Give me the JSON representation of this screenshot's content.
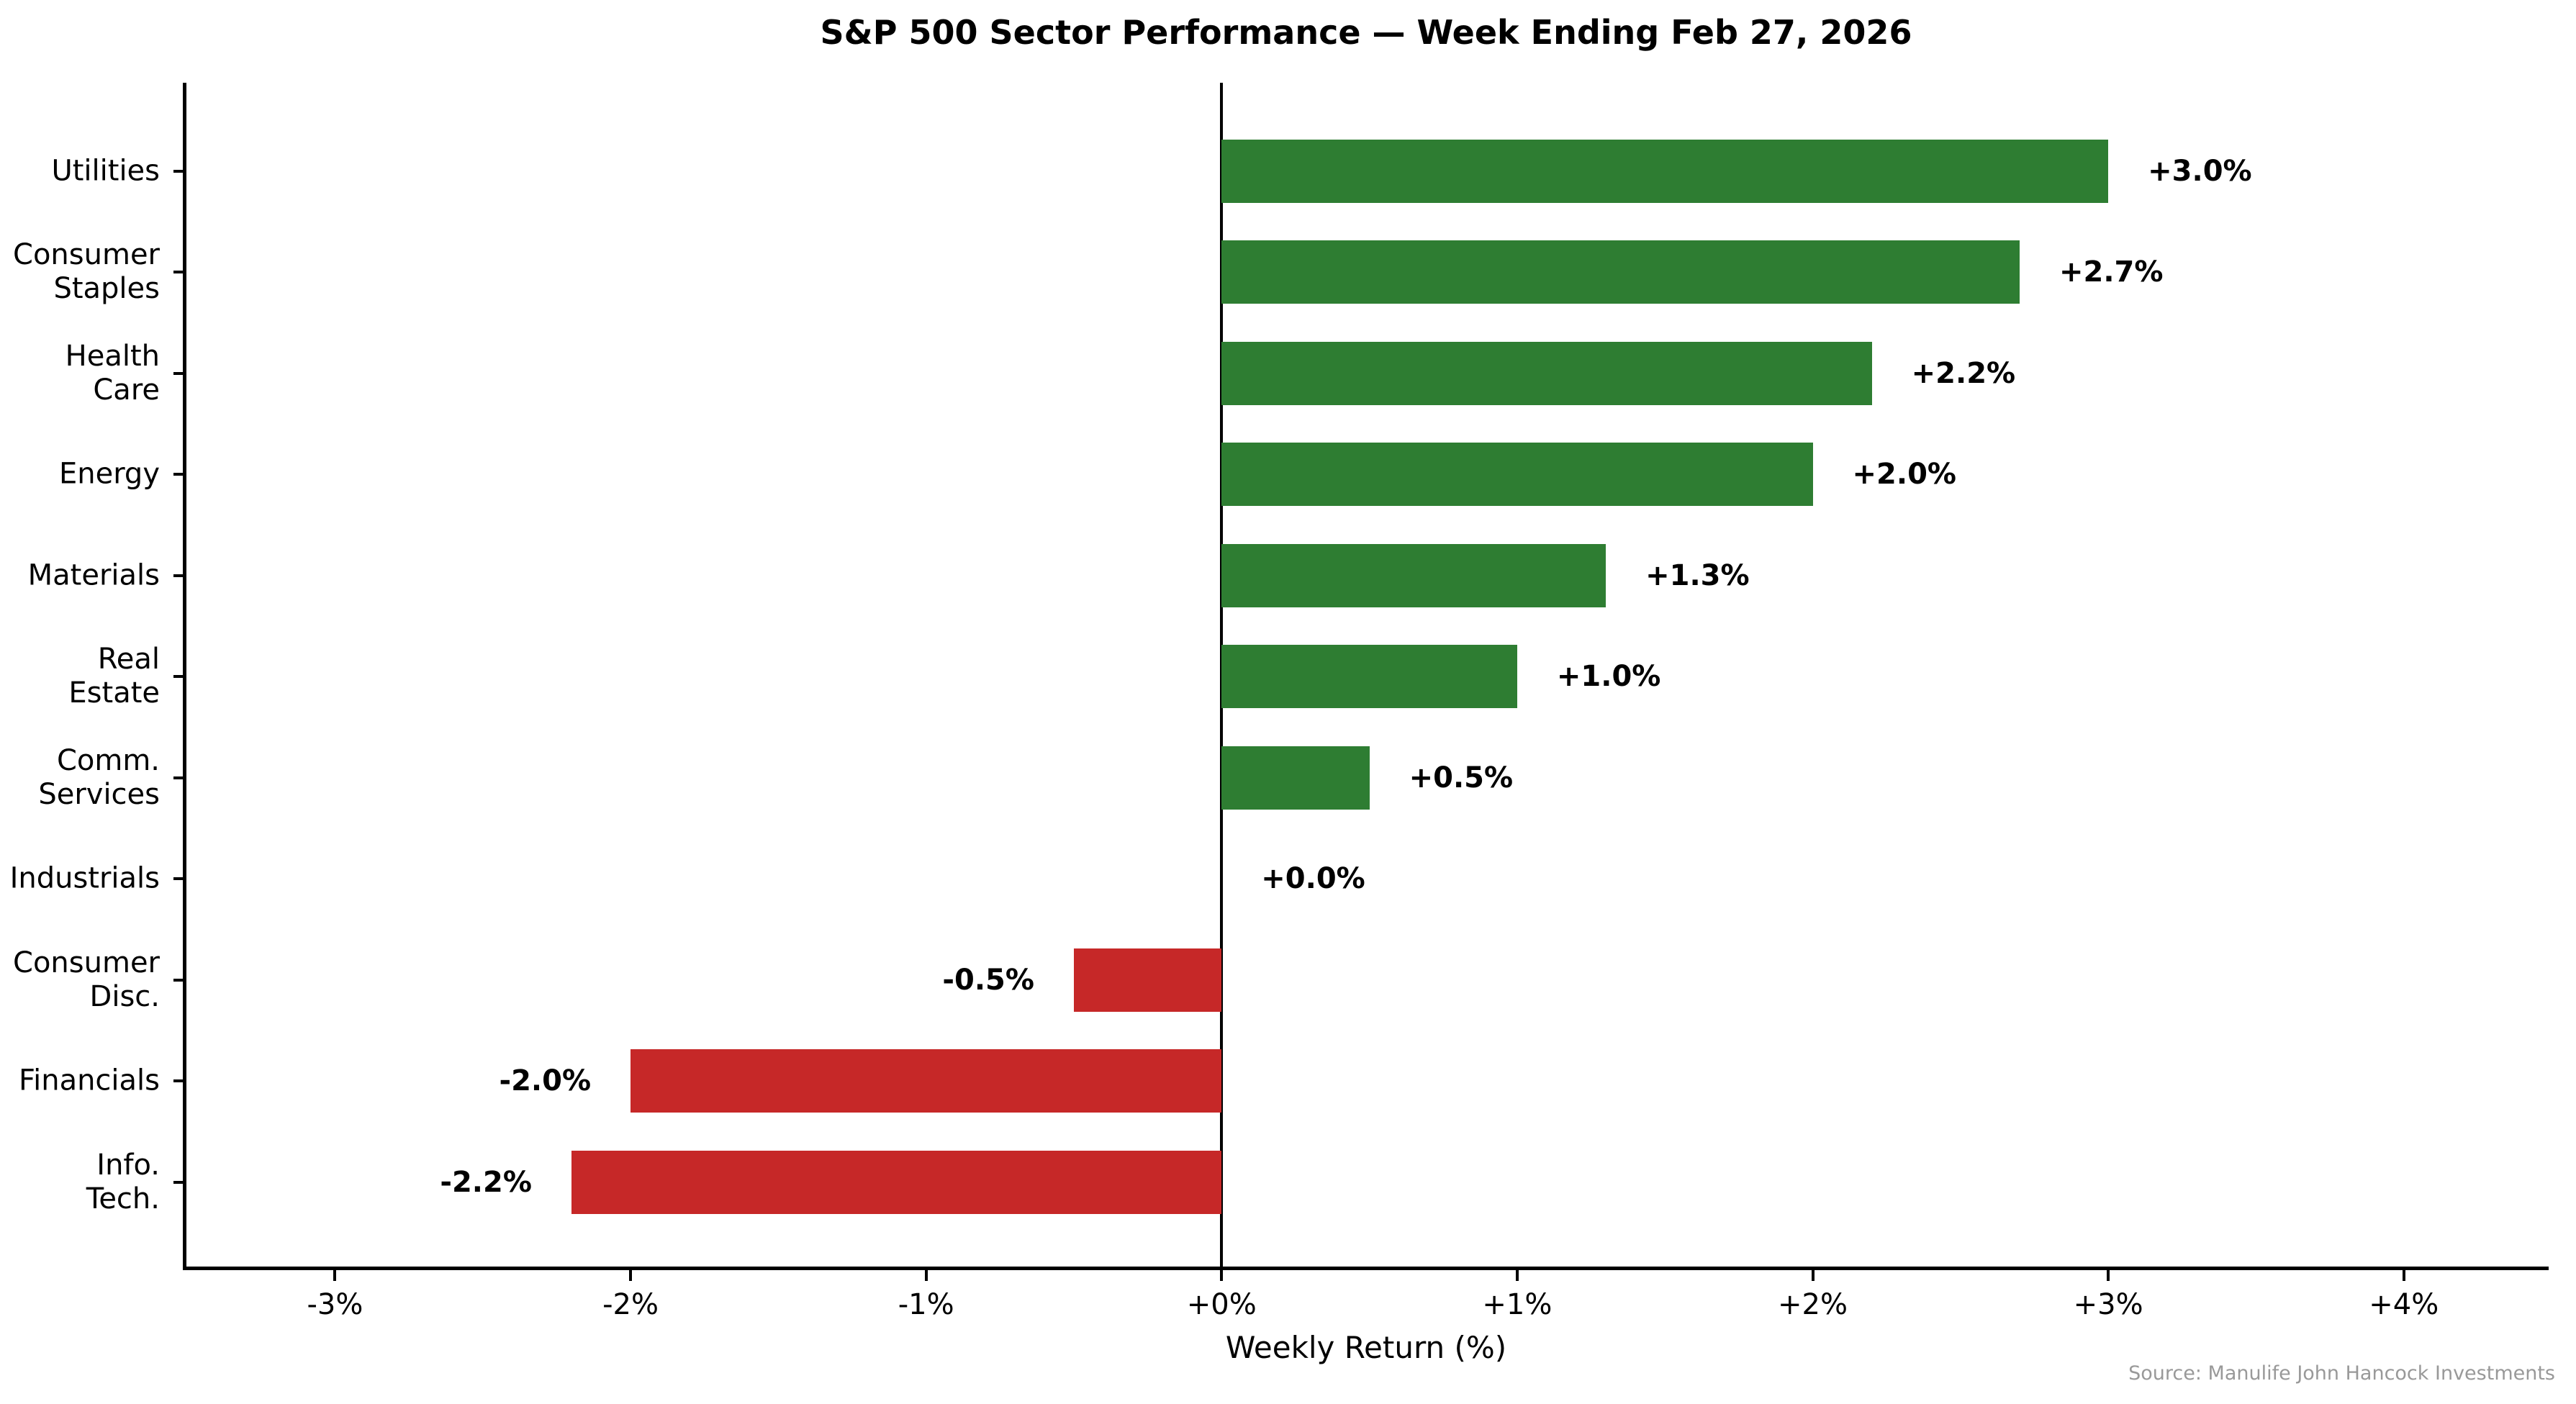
{
  "chart_data": {
    "type": "bar",
    "orientation": "horizontal",
    "title": "S&P 500 Sector Performance — Week Ending Feb 27, 2026",
    "xlabel": "Weekly Return (%)",
    "source_note": "Source: Manulife John Hancock Investments",
    "xlim": [
      -3.51,
      4.49
    ],
    "grid": false,
    "legend": "none",
    "xticks": [
      {
        "value": -3,
        "label": "-3%"
      },
      {
        "value": -2,
        "label": "-2%"
      },
      {
        "value": -1,
        "label": "-1%"
      },
      {
        "value": 0,
        "label": "+0%"
      },
      {
        "value": 1,
        "label": "+1%"
      },
      {
        "value": 2,
        "label": "+2%"
      },
      {
        "value": 3,
        "label": "+3%"
      },
      {
        "value": 4,
        "label": "+4%"
      }
    ],
    "colors": {
      "positive": "#2e7d32",
      "negative": "#c62828",
      "axis": "#000000",
      "source_text": "#999999"
    },
    "bars": [
      {
        "sector": "Utilities",
        "label_lines": [
          "Utilities"
        ],
        "value": 3.0,
        "value_label": "+3.0%"
      },
      {
        "sector": "Consumer Staples",
        "label_lines": [
          "Consumer",
          "Staples"
        ],
        "value": 2.7,
        "value_label": "+2.7%"
      },
      {
        "sector": "Health Care",
        "label_lines": [
          "Health",
          "Care"
        ],
        "value": 2.2,
        "value_label": "+2.2%"
      },
      {
        "sector": "Energy",
        "label_lines": [
          "Energy"
        ],
        "value": 2.0,
        "value_label": "+2.0%"
      },
      {
        "sector": "Materials",
        "label_lines": [
          "Materials"
        ],
        "value": 1.3,
        "value_label": "+1.3%"
      },
      {
        "sector": "Real Estate",
        "label_lines": [
          "Real",
          "Estate"
        ],
        "value": 1.0,
        "value_label": "+1.0%"
      },
      {
        "sector": "Comm. Services",
        "label_lines": [
          "Comm.",
          "Services"
        ],
        "value": 0.5,
        "value_label": "+0.5%"
      },
      {
        "sector": "Industrials",
        "label_lines": [
          "Industrials"
        ],
        "value": 0.0,
        "value_label": "+0.0%"
      },
      {
        "sector": "Consumer Disc.",
        "label_lines": [
          "Consumer",
          "Disc."
        ],
        "value": -0.5,
        "value_label": "-0.5%"
      },
      {
        "sector": "Financials",
        "label_lines": [
          "Financials"
        ],
        "value": -2.0,
        "value_label": "-2.0%"
      },
      {
        "sector": "Info. Tech.",
        "label_lines": [
          "Info.",
          "Tech."
        ],
        "value": -2.2,
        "value_label": "-2.2%"
      }
    ]
  }
}
